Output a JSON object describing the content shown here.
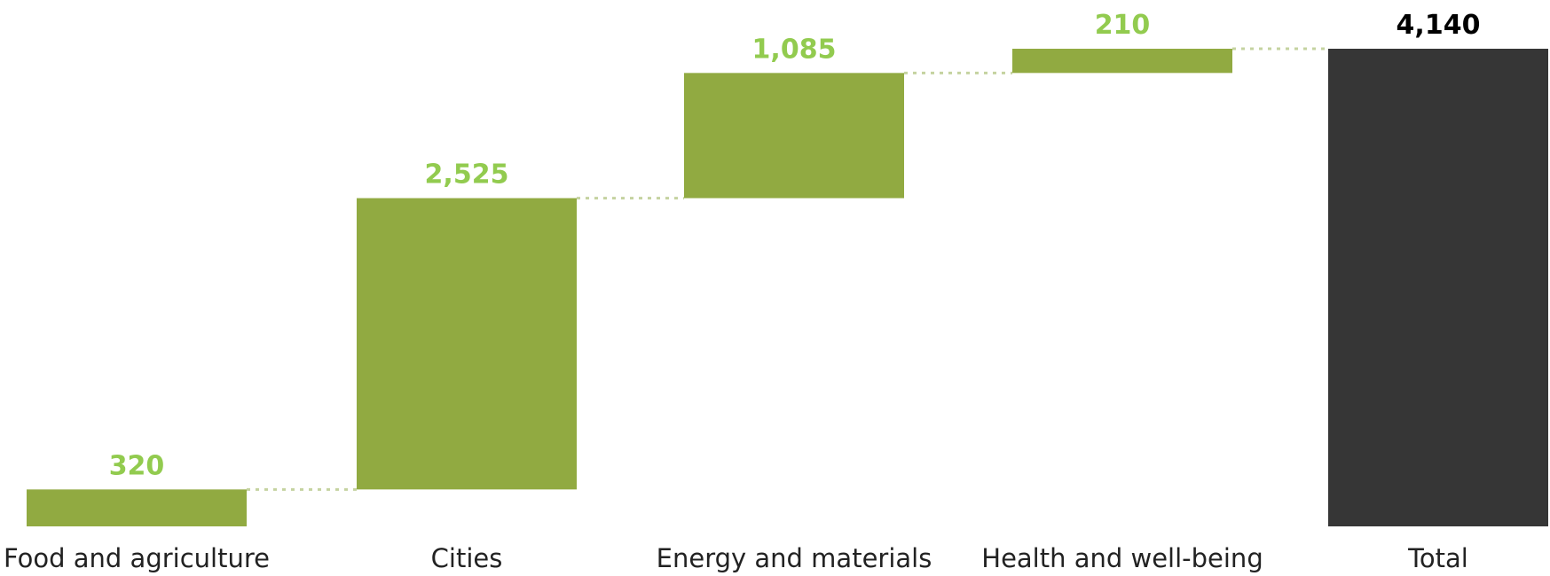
{
  "chart_data": {
    "type": "bar",
    "subtype": "waterfall",
    "categories": [
      "Food and agriculture",
      "Cities",
      "Energy and materials",
      "Health and well-being",
      "Total"
    ],
    "values": [
      320,
      2525,
      1085,
      210,
      4140
    ],
    "value_labels": [
      "320",
      "2,525",
      "1,085",
      "210",
      "4,140"
    ],
    "is_total": [
      false,
      false,
      false,
      false,
      true
    ],
    "title": "",
    "xlabel": "",
    "ylabel": "",
    "ylim": [
      0,
      4140
    ],
    "grid": false,
    "legend": "none",
    "connectors": "dotted",
    "colors": {
      "increment_bar": "#91AA41",
      "increment_label": "#92CB4F",
      "total_bar": "#363636",
      "total_label": "#000000",
      "connector": "#C5D3A0"
    }
  }
}
